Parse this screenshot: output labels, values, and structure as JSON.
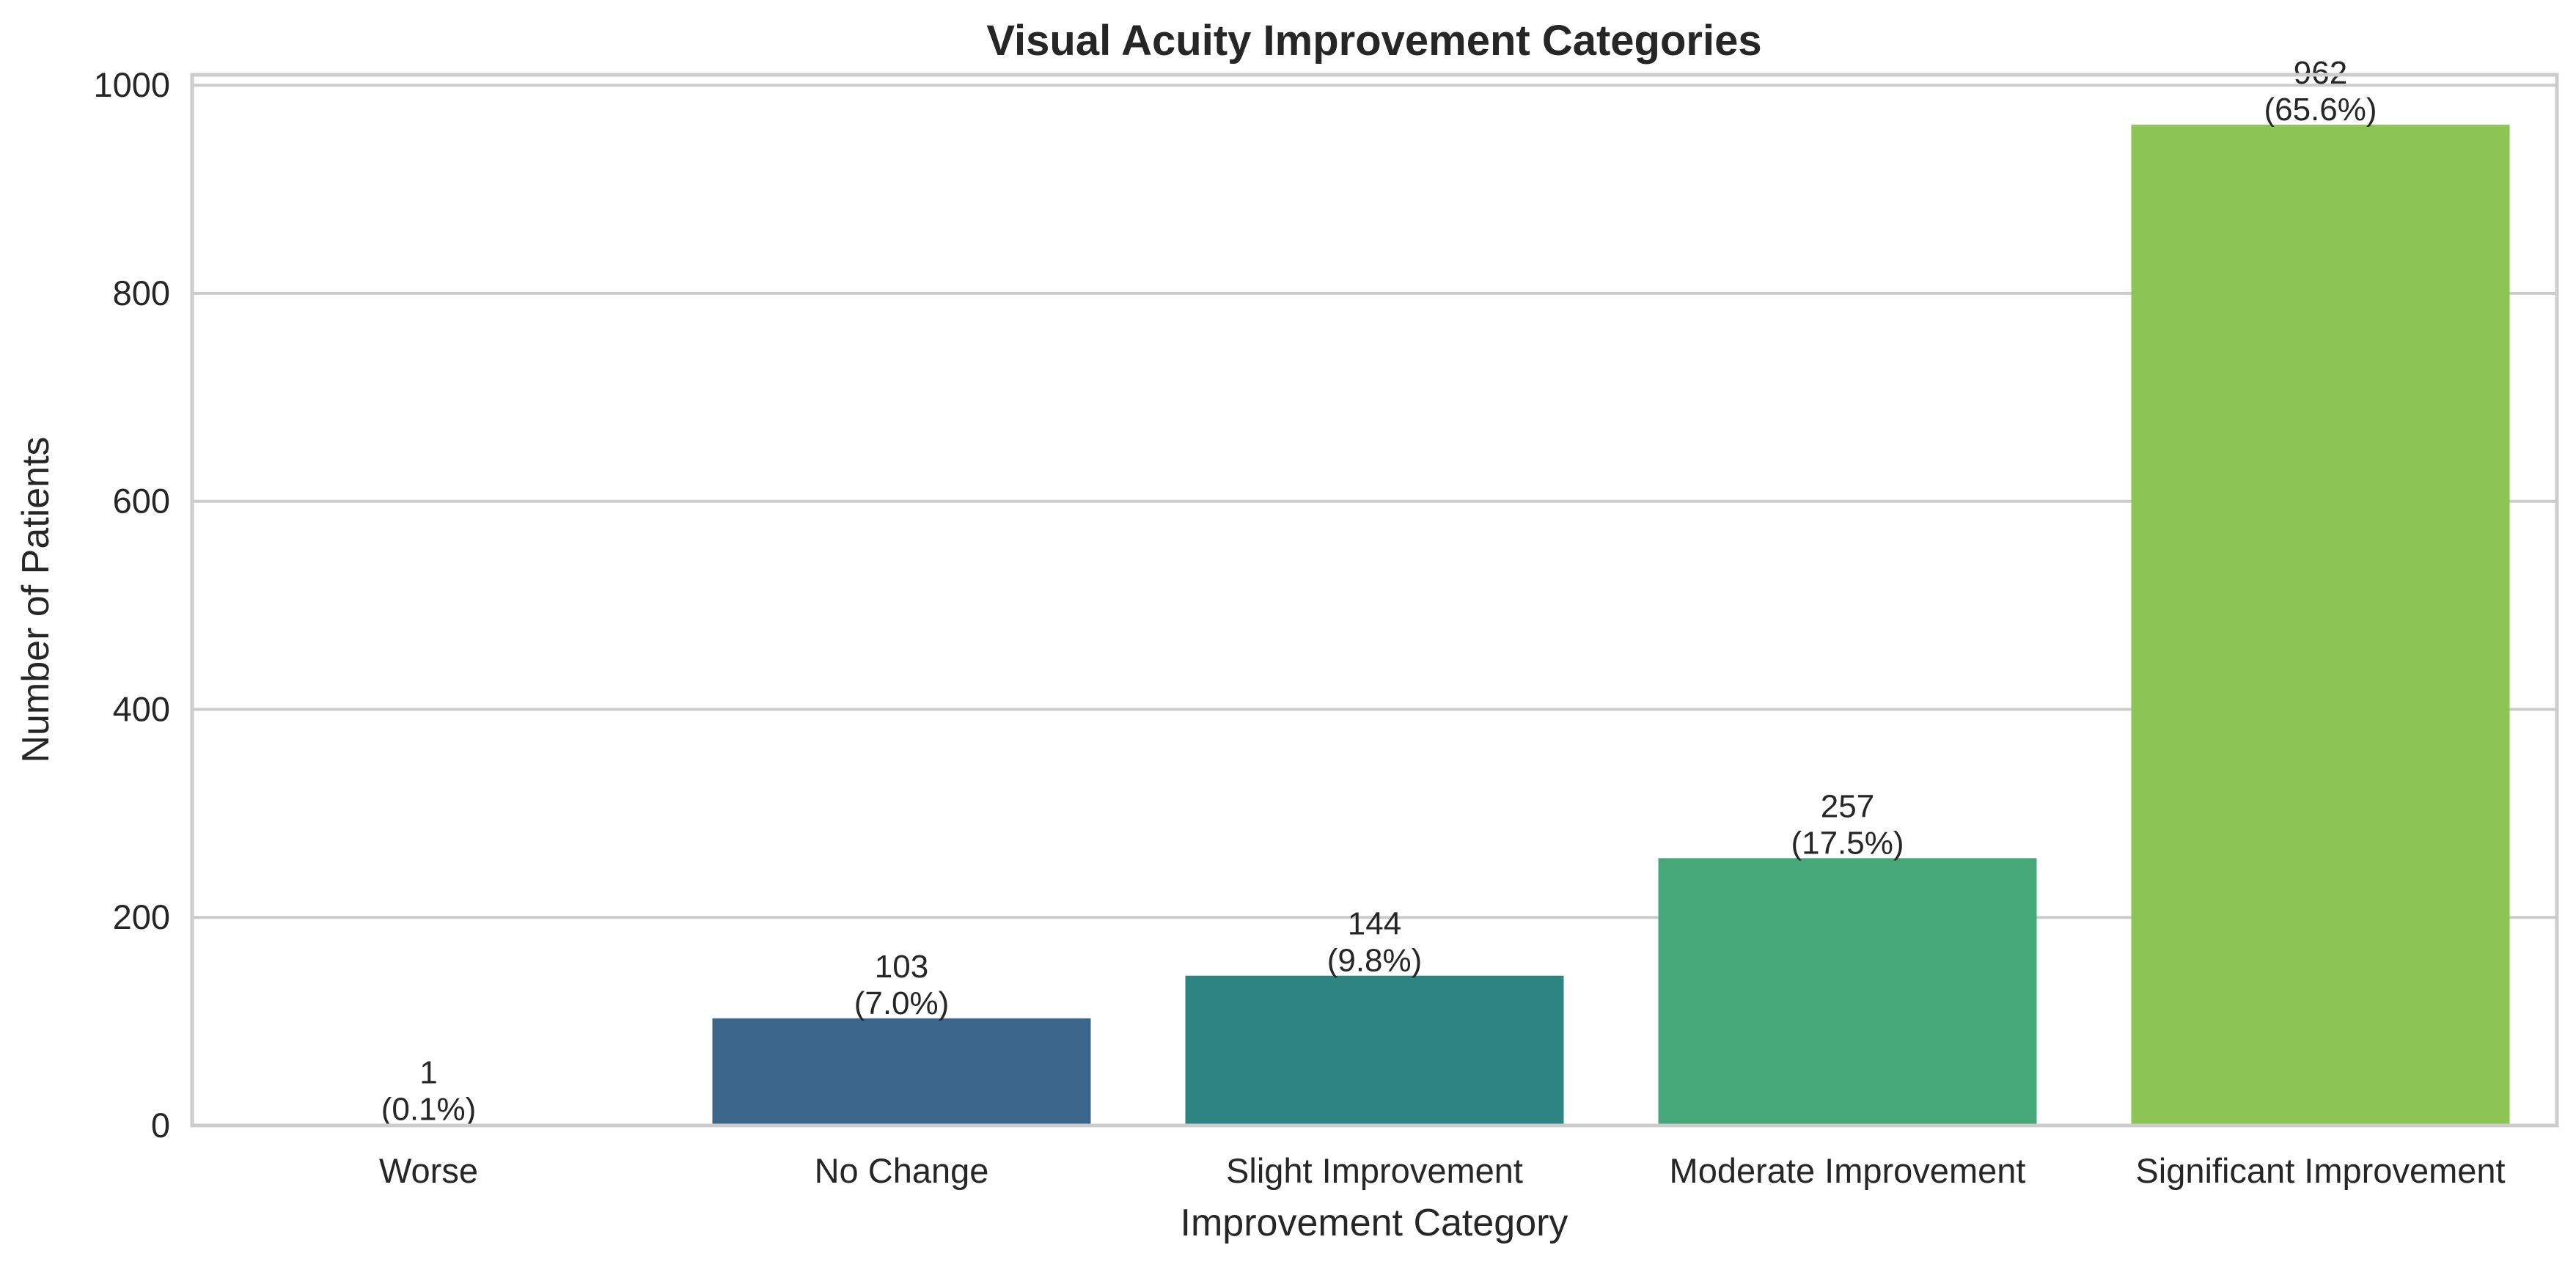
{
  "chart_data": {
    "type": "bar",
    "title": "Visual Acuity Improvement Categories",
    "xlabel": "Improvement Category",
    "ylabel": "Number of Patients",
    "categories": [
      "Worse",
      "No Change",
      "Slight Improvement",
      "Moderate Improvement",
      "Significant Improvement"
    ],
    "values": [
      1,
      103,
      144,
      257,
      962
    ],
    "percent_labels": [
      "(0.1%)",
      "(7.0%)",
      "(9.8%)",
      "(17.5%)",
      "(65.6%)"
    ],
    "colors": [
      "#440154",
      "#3b658a",
      "#2e8480",
      "#46a878",
      "#8dc555"
    ],
    "ylim": [
      0,
      1010
    ],
    "yticks": [
      0,
      200,
      400,
      600,
      800,
      1000
    ],
    "grid": true,
    "legend": null
  }
}
